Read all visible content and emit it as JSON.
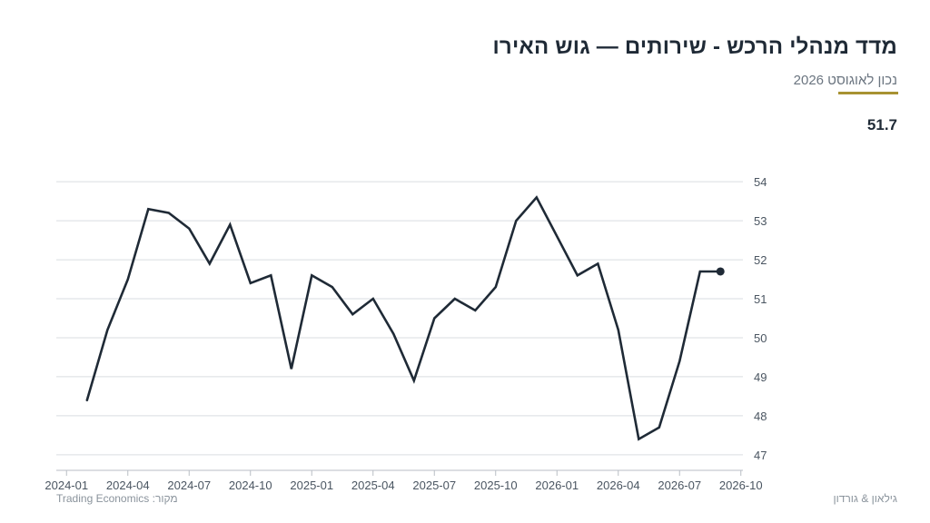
{
  "header": {
    "title": "מדד מנהלי הרכש - שירותים — גוש האירו",
    "subtitle": "נכון לאוגוסט 2026",
    "latest_value": "51.7"
  },
  "footer": {
    "source_label": "מקור:",
    "source_name": "Trading Economics",
    "brand": "גילאון & גורדון"
  },
  "colors": {
    "line": "#1f2a36",
    "grid": "#d9dde1",
    "accent": "#a89232",
    "axis_text": "#4a5561"
  },
  "chart_data": {
    "type": "line",
    "title": "מדד מנהלי הרכש - שירותים — גוש האירו",
    "xlabel": "",
    "ylabel": "",
    "x": [
      "2024-02",
      "2024-03",
      "2024-04",
      "2024-05",
      "2024-06",
      "2024-07",
      "2024-08",
      "2024-09",
      "2024-10",
      "2024-11",
      "2024-12",
      "2025-01",
      "2025-02",
      "2025-03",
      "2025-04",
      "2025-05",
      "2025-06",
      "2025-07",
      "2025-08",
      "2025-09",
      "2025-10",
      "2025-11",
      "2025-12",
      "2026-01",
      "2026-02",
      "2026-03",
      "2026-04",
      "2026-05",
      "2026-06",
      "2026-07",
      "2026-08",
      "2026-09"
    ],
    "series": [
      {
        "values": [
          48.4,
          50.2,
          51.5,
          53.3,
          53.2,
          52.8,
          51.9,
          52.9,
          51.4,
          51.6,
          49.2,
          51.6,
          51.3,
          50.6,
          51.0,
          50.1,
          48.9,
          50.5,
          51.0,
          50.7,
          51.3,
          53.0,
          53.6,
          52.6,
          51.6,
          51.9,
          50.2,
          47.4,
          47.7,
          49.4,
          51.7,
          51.7
        ]
      }
    ],
    "x_ticks": [
      "2024-01",
      "2024-04",
      "2024-07",
      "2024-10",
      "2025-01",
      "2025-04",
      "2025-07",
      "2025-10",
      "2026-01",
      "2026-04",
      "2026-07",
      "2026-10"
    ],
    "y_ticks": [
      47,
      48,
      49,
      50,
      51,
      52,
      53,
      54
    ],
    "ylim": [
      46.6,
      54.4
    ],
    "grid": true,
    "y_axis_side": "right",
    "legend": "none",
    "last_point_marker": true
  }
}
